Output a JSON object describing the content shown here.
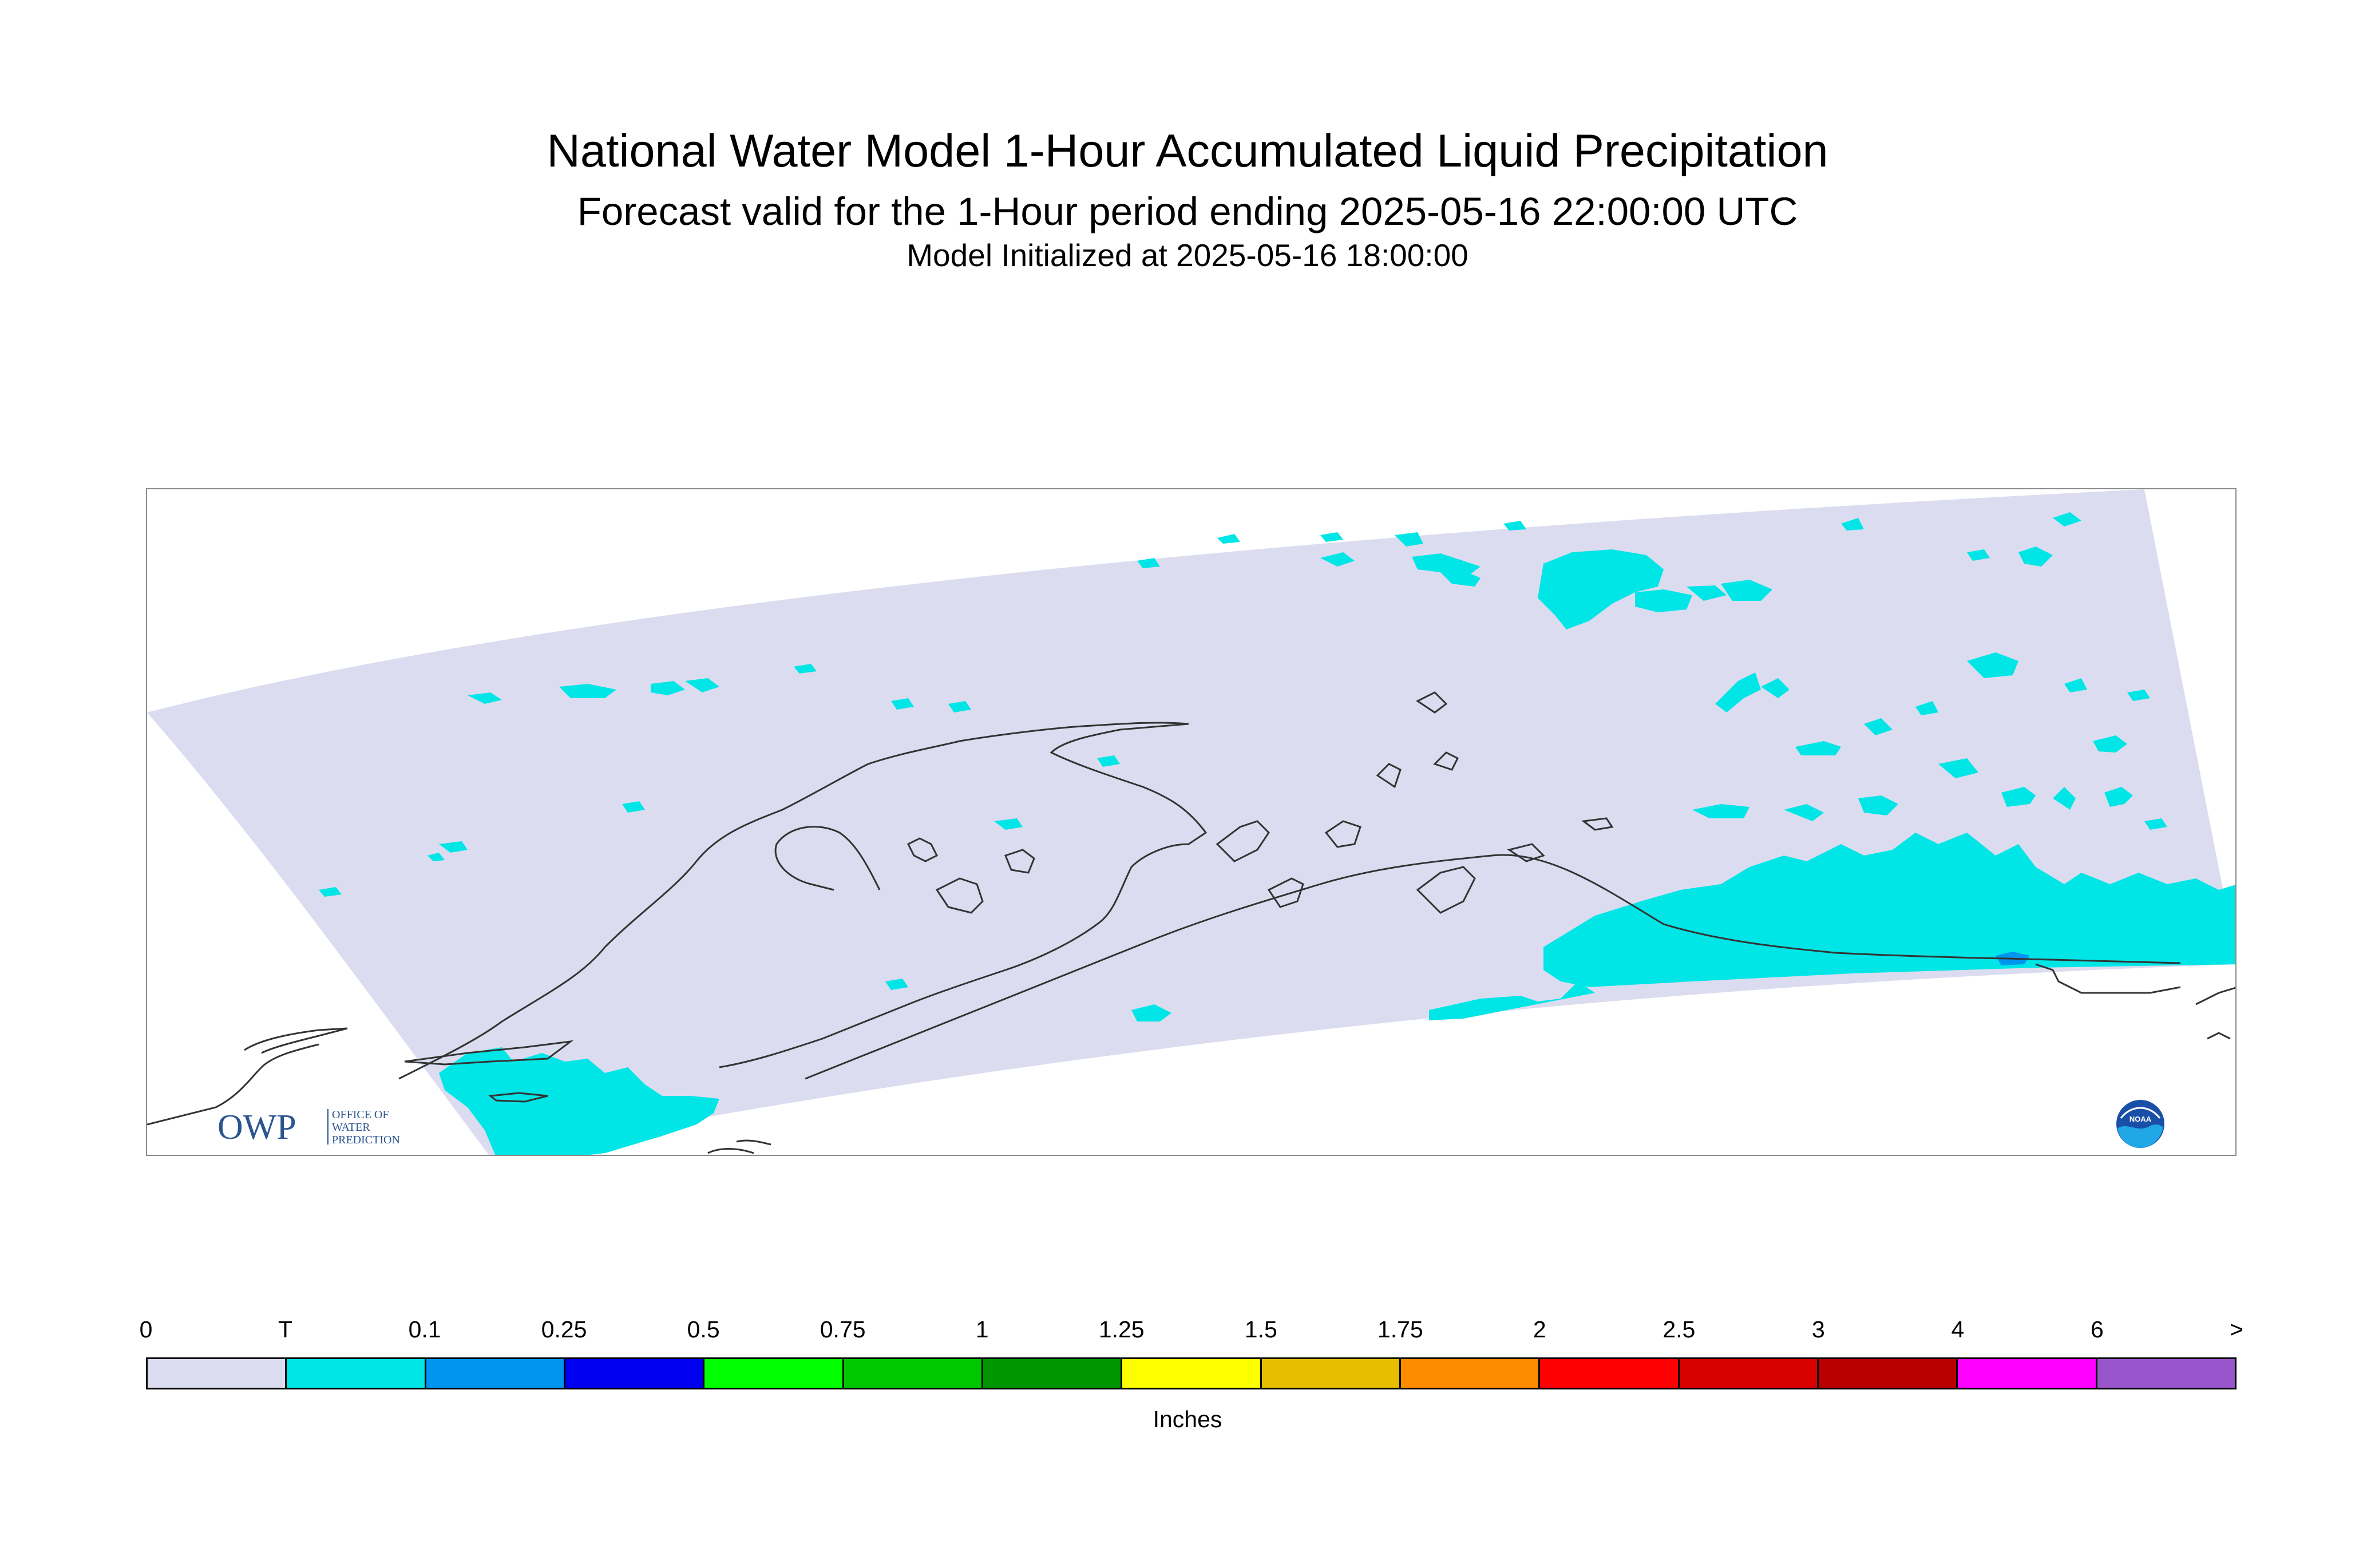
{
  "header": {
    "title": "National Water Model 1-Hour Accumulated Liquid Precipitation",
    "subtitle": "Forecast valid for the 1-Hour period ending 2025-05-16 22:00:00 UTC",
    "init": "Model Initialized at 2025-05-16 18:00:00"
  },
  "logos": {
    "owp_mark": "OWP",
    "owp_text": [
      "OFFICE OF",
      "WATER",
      "PREDICTION"
    ],
    "noaa_mark": "NOAA"
  },
  "colors": {
    "domain_fill": "#dcdcf0",
    "trace": "#00e5e5",
    "coast": "#333333",
    "frame": "#8c8c8c"
  },
  "legend": {
    "units": "Inches",
    "ticks": [
      "0",
      "T",
      "0.1",
      "0.25",
      "0.5",
      "0.75",
      "1",
      "1.25",
      "1.5",
      "1.75",
      "2",
      "2.5",
      "3",
      "4",
      "6",
      ">"
    ],
    "colors": [
      "#dcdcf0",
      "#00e5e5",
      "#0096f0",
      "#0000f0",
      "#00ff00",
      "#00c800",
      "#009600",
      "#ffff00",
      "#e6bf00",
      "#ff8c00",
      "#ff0000",
      "#d90000",
      "#b80000",
      "#ff00ff",
      "#9955cc"
    ]
  }
}
